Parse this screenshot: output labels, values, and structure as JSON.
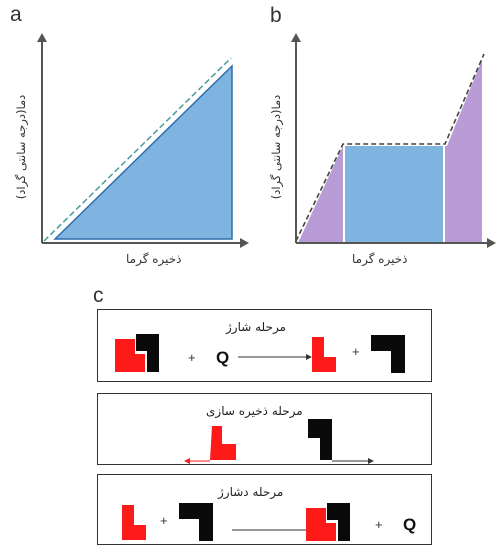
{
  "panels": {
    "a": {
      "letter": "a",
      "xlabel": "ذخیره گرما",
      "ylabel": "دما(درجه سانتی گراد)"
    },
    "b": {
      "letter": "b",
      "xlabel": "ذخیره گرما",
      "ylabel": "دما(درجه سانتی گراد)"
    },
    "c": {
      "letter": "c"
    }
  },
  "stages": {
    "charge": {
      "title": "مرحله شارژ",
      "plus": "+",
      "q": "Q",
      "plus2": "+"
    },
    "storage": {
      "title": "مرحله ذخیره سازی"
    },
    "discharge": {
      "title": "مرحله دشارژ",
      "plus": "+",
      "plus2": "+",
      "q": "Q"
    }
  },
  "colors": {
    "sensible": "#7fb3e0",
    "latent_edge": "#2f6fae",
    "purple": "#b99bd6",
    "red": "#ff1a1a",
    "black": "#0a0a0a",
    "dash": "#555555"
  }
}
